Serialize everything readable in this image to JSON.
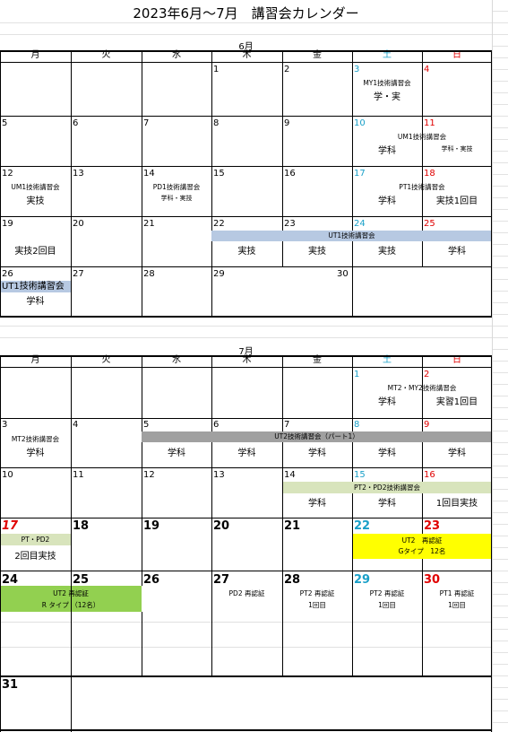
{
  "title": "2023年6月～7月　講習会カレンダー",
  "weekdays": [
    "月",
    "火",
    "水",
    "木",
    "金",
    "土",
    "日"
  ],
  "colors": {
    "saturday": "#1aa0c8",
    "sunday": "#e00000",
    "band_blue": "#b7c9e2",
    "band_gray": "#a0a0a0",
    "band_green": "#d8e4bc",
    "band_yellow": "#ffff00",
    "band_lime": "#92d050"
  },
  "june": {
    "label": "6月",
    "days": [
      "1",
      "2",
      "3",
      "4",
      "5",
      "6",
      "7",
      "8",
      "9",
      "10",
      "11",
      "12",
      "13",
      "14",
      "15",
      "16",
      "17",
      "18",
      "19",
      "20",
      "21",
      "22",
      "23",
      "24",
      "25",
      "26",
      "27",
      "28",
      "29",
      "30"
    ],
    "notes": {
      "d3_event": "MY1技術講習会",
      "d3_detail": "学・実",
      "d10_detail": "学科",
      "d11_event": "UM1技術講習会",
      "d11_detail": "学科・実技",
      "d12_event": "UM1技術講習会",
      "d12_detail": "実技",
      "d14_event": "PD1技術講習会",
      "d14_detail": "学科・実技",
      "d17_event": "PT1技術講習会",
      "d17_detail": "学科",
      "d18_detail": "実技1回目",
      "d19_detail": "実技2回目",
      "ut1_band": "UT1技術講習会",
      "d22_detail": "実技",
      "d23_detail": "実技",
      "d24_detail": "実技",
      "d25_detail": "学科",
      "d26_event": "UT1技術講習会",
      "d26_detail": "学科"
    }
  },
  "july": {
    "label": "7月",
    "days": [
      "1",
      "2",
      "3",
      "4",
      "5",
      "6",
      "7",
      "8",
      "9",
      "10",
      "11",
      "12",
      "13",
      "14",
      "15",
      "16",
      "17",
      "18",
      "19",
      "20",
      "21",
      "22",
      "23",
      "24",
      "25",
      "26",
      "27",
      "28",
      "29",
      "30",
      "31"
    ],
    "notes": {
      "d2_event": "MT2・MY2技術講習会",
      "d1_detail": "学科",
      "d2_detail": "実習1回目",
      "d3_event": "MT2技術講習会",
      "d3_detail": "学科",
      "ut2_band": "UT2技術講習会（パート1）",
      "d5_detail": "学科",
      "d6_detail": "学科",
      "d7_detail": "学科",
      "d8_detail": "学科",
      "d9_detail": "学科",
      "pt2_band": "PT2・PD2技術講習会",
      "d14_detail": "学科",
      "d15_detail": "学科",
      "d16_detail": "1回目実技",
      "d17_event": "PT・PD2",
      "d17_detail": "2回目実技",
      "yellow_line1": "UT2　再認証",
      "yellow_line2": "Gタイプ　12名",
      "lime_line1": "UT2 再認証",
      "lime_line2": "R タイプ （12名）",
      "d27_event": "PD2 再認証",
      "d28_event": "PT2 再認証",
      "d28_detail": "1回目",
      "d29_event": "PT2 再認証",
      "d29_detail": "1回目",
      "d30_event": "PT1 再認証",
      "d30_detail": "1回目"
    }
  }
}
